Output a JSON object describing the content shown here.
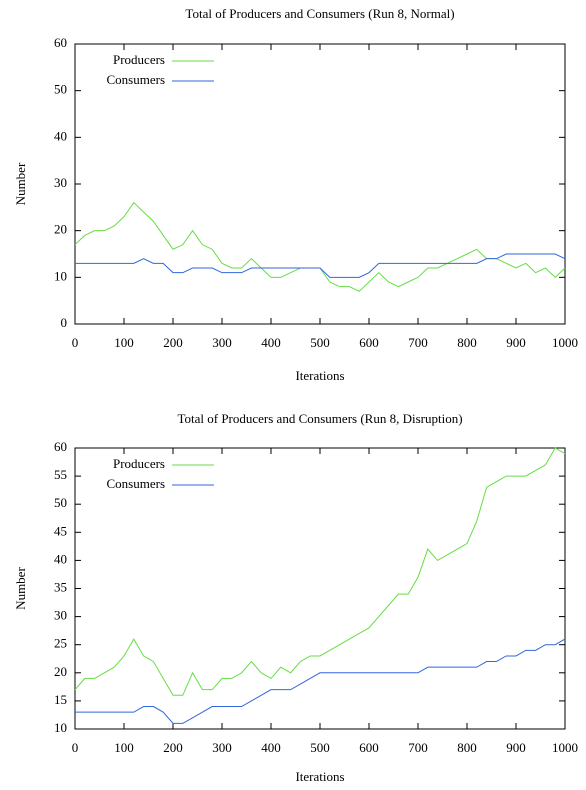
{
  "chart_data": [
    {
      "type": "line",
      "title": "Total of Producers and Consumers (Run 8, Normal)",
      "x_label": "Iterations",
      "y_label": "Number",
      "x": [
        0,
        20,
        40,
        60,
        80,
        100,
        120,
        140,
        160,
        180,
        200,
        220,
        240,
        260,
        280,
        300,
        320,
        340,
        360,
        380,
        400,
        420,
        440,
        460,
        480,
        500,
        520,
        540,
        560,
        580,
        600,
        620,
        640,
        660,
        680,
        700,
        720,
        740,
        760,
        780,
        800,
        820,
        840,
        860,
        880,
        900,
        920,
        940,
        960,
        980,
        1000
      ],
      "series": [
        {
          "name": "Producers",
          "color": "#66dd44",
          "values": [
            17,
            19,
            20,
            20,
            21,
            23,
            26,
            24,
            22,
            19,
            16,
            17,
            20,
            17,
            16,
            13,
            12,
            12,
            14,
            12,
            10,
            10,
            11,
            12,
            12,
            12,
            9,
            8,
            8,
            7,
            9,
            11,
            9,
            8,
            9,
            10,
            12,
            12,
            13,
            14,
            15,
            16,
            14,
            14,
            13,
            12,
            13,
            11,
            12,
            10,
            12
          ]
        },
        {
          "name": "Consumers",
          "color": "#3366dd",
          "values": [
            13,
            13,
            13,
            13,
            13,
            13,
            13,
            14,
            13,
            13,
            11,
            11,
            12,
            12,
            12,
            11,
            11,
            11,
            12,
            12,
            12,
            12,
            12,
            12,
            12,
            12,
            10,
            10,
            10,
            10,
            11,
            13,
            13,
            13,
            13,
            13,
            13,
            13,
            13,
            13,
            13,
            13,
            14,
            14,
            15,
            15,
            15,
            15,
            15,
            15,
            14
          ]
        }
      ],
      "xlim": [
        0,
        1000
      ],
      "xticks": [
        0,
        100,
        200,
        300,
        400,
        500,
        600,
        700,
        800,
        900,
        1000
      ],
      "ylim": [
        0,
        60
      ],
      "yticks": [
        0,
        10,
        20,
        30,
        40,
        50,
        60
      ],
      "legend": "top-left"
    },
    {
      "type": "line",
      "title": "Total of Producers and Consumers (Run 8, Disruption)",
      "x_label": "Iterations",
      "y_label": "Number",
      "x": [
        0,
        20,
        40,
        60,
        80,
        100,
        120,
        140,
        160,
        180,
        200,
        220,
        240,
        260,
        280,
        300,
        320,
        340,
        360,
        380,
        400,
        420,
        440,
        460,
        480,
        500,
        520,
        540,
        560,
        580,
        600,
        620,
        640,
        660,
        680,
        700,
        720,
        740,
        760,
        780,
        800,
        820,
        840,
        860,
        880,
        900,
        920,
        940,
        960,
        980,
        1000
      ],
      "series": [
        {
          "name": "Producers",
          "color": "#66dd44",
          "values": [
            17,
            19,
            19,
            20,
            21,
            23,
            26,
            23,
            22,
            19,
            16,
            16,
            20,
            17,
            17,
            19,
            19,
            20,
            22,
            20,
            19,
            21,
            20,
            22,
            23,
            23,
            24,
            25,
            26,
            27,
            28,
            30,
            32,
            34,
            34,
            37,
            42,
            40,
            41,
            42,
            43,
            47,
            53,
            54,
            55,
            55,
            55,
            56,
            57,
            60,
            59
          ]
        },
        {
          "name": "Consumers",
          "color": "#3366dd",
          "values": [
            13,
            13,
            13,
            13,
            13,
            13,
            13,
            14,
            14,
            13,
            11,
            11,
            12,
            13,
            14,
            14,
            14,
            14,
            15,
            16,
            17,
            17,
            17,
            18,
            19,
            20,
            20,
            20,
            20,
            20,
            20,
            20,
            20,
            20,
            20,
            20,
            21,
            21,
            21,
            21,
            21,
            21,
            22,
            22,
            23,
            23,
            24,
            24,
            25,
            25,
            26
          ]
        }
      ],
      "xlim": [
        0,
        1000
      ],
      "xticks": [
        0,
        100,
        200,
        300,
        400,
        500,
        600,
        700,
        800,
        900,
        1000
      ],
      "ylim": [
        10,
        60
      ],
      "yticks": [
        10,
        15,
        20,
        25,
        30,
        35,
        40,
        45,
        50,
        55,
        60
      ],
      "legend": "top-left"
    }
  ]
}
